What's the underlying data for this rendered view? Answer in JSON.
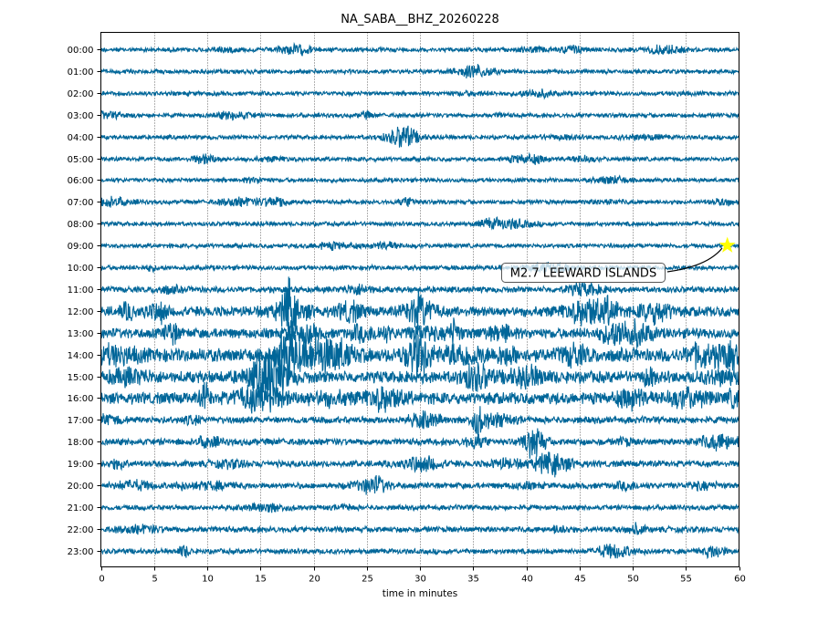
{
  "chart_data": {
    "type": "line",
    "subtype": "helicorder",
    "title": "NA_SABA__BHZ_20260228",
    "xlabel": "time in minutes",
    "xlim": [
      0,
      60
    ],
    "xticks": [
      0,
      5,
      10,
      15,
      20,
      25,
      30,
      35,
      40,
      45,
      50,
      55,
      60
    ],
    "grid": "vertical dotted",
    "trace_color": "#006699",
    "rows": [
      "00:00",
      "01:00",
      "02:00",
      "03:00",
      "04:00",
      "05:00",
      "06:00",
      "07:00",
      "08:00",
      "09:00",
      "10:00",
      "11:00",
      "12:00",
      "13:00",
      "14:00",
      "15:00",
      "16:00",
      "17:00",
      "18:00",
      "19:00",
      "20:00",
      "21:00",
      "22:00",
      "23:00"
    ],
    "relative_noise_amplitude": [
      1.0,
      1.0,
      1.0,
      1.0,
      1.0,
      1.0,
      1.0,
      1.0,
      1.0,
      1.0,
      1.1,
      1.4,
      2.4,
      2.4,
      3.2,
      2.8,
      2.8,
      1.6,
      1.6,
      1.5,
      1.4,
      1.2,
      1.4,
      1.2
    ],
    "event": {
      "label": "M2.7 LEEWARD ISLANDS",
      "row": "09:00",
      "minute": 58.9,
      "marker_color": "#ffff00"
    }
  }
}
